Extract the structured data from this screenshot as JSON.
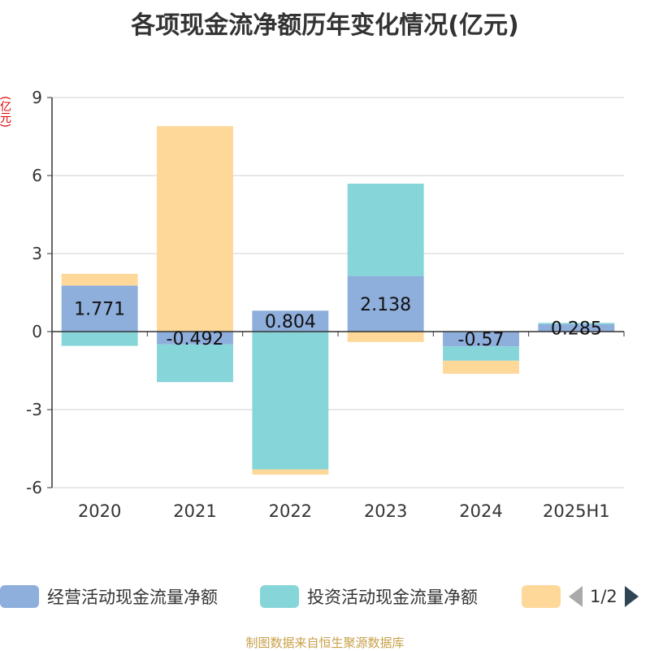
{
  "chart_data": {
    "type": "bar",
    "stacked": true,
    "title": "各项现金流净额历年变化情况(亿元)",
    "ylabel": "(亿元)",
    "ylim": [
      -6,
      9
    ],
    "yticks": [
      -6,
      -3,
      0,
      3,
      6,
      9
    ],
    "categories": [
      "2020",
      "2021",
      "2022",
      "2023",
      "2024",
      "2025H1"
    ],
    "series": [
      {
        "name": "经营活动现金流量净额",
        "color": "#8eaedc",
        "values": [
          1.771,
          -0.492,
          0.804,
          2.138,
          -0.57,
          0.285
        ],
        "labels": [
          "1.771",
          "-0.492",
          "0.804",
          "2.138",
          "-0.57",
          "0.285"
        ]
      },
      {
        "name": "投资活动现金流量净额",
        "color": "#86d5d8",
        "values": [
          -0.55,
          -1.45,
          -5.3,
          3.55,
          -0.55,
          0.05
        ]
      },
      {
        "name": "",
        "color": "#fdd899",
        "values": [
          0.45,
          7.9,
          -0.2,
          -0.4,
          -0.5,
          0.0
        ]
      }
    ],
    "legend_position": "bottom",
    "grid": true
  },
  "legend": {
    "page": "1/2"
  },
  "footer": "制图数据来自恒生聚源数据库"
}
